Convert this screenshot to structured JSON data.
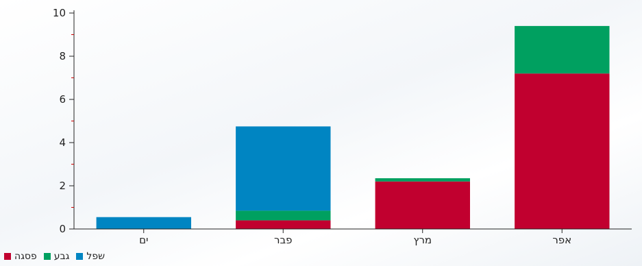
{
  "chart_data": {
    "type": "bar",
    "stacked": true,
    "categories": [
      "ים",
      "פבר",
      "מרץ",
      "אפר"
    ],
    "series": [
      {
        "name": "פסגה",
        "color": "#c1002f",
        "values": [
          0,
          0.4,
          2.2,
          7.2
        ]
      },
      {
        "name": "גבע",
        "color": "#00a060",
        "values": [
          0,
          0.45,
          0.15,
          2.2
        ]
      },
      {
        "name": "שפל",
        "color": "#0085c2",
        "values": [
          0.55,
          3.9,
          0,
          0
        ]
      }
    ],
    "ylim": [
      0,
      10
    ],
    "yticks": [
      0,
      2,
      4,
      6,
      8,
      10
    ],
    "title": "",
    "xlabel": "",
    "ylabel": "",
    "legend_position": "bottom-left",
    "grid": false
  }
}
